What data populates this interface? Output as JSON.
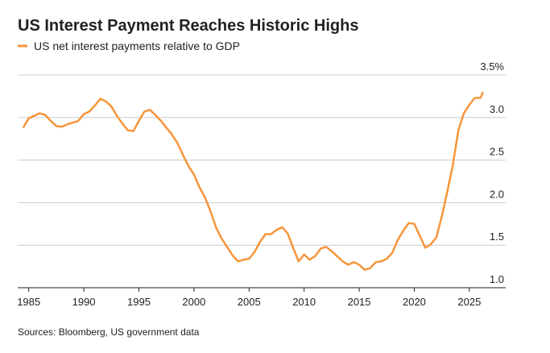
{
  "chart_data": {
    "type": "line",
    "title": "US Interest Payment Reaches Historic Highs",
    "source": "Sources: Bloomberg, US government data",
    "x": [
      1984.5,
      1985,
      1985.5,
      1986,
      1986.5,
      1987,
      1987.5,
      1988,
      1988.5,
      1989,
      1989.5,
      1990,
      1990.5,
      1991,
      1991.5,
      1992,
      1992.5,
      1993,
      1993.5,
      1994,
      1994.5,
      1995,
      1995.5,
      1996,
      1996.5,
      1997,
      1997.5,
      1998,
      1998.5,
      1999,
      1999.5,
      2000,
      2000.5,
      2001,
      2001.5,
      2002,
      2002.5,
      2003,
      2003.5,
      2004,
      2004.5,
      2005,
      2005.5,
      2006,
      2006.5,
      2007,
      2007.5,
      2008,
      2008.5,
      2009,
      2009.5,
      2010,
      2010.5,
      2011,
      2011.5,
      2012,
      2012.5,
      2013,
      2013.5,
      2014,
      2014.5,
      2015,
      2015.5,
      2016,
      2016.5,
      2017,
      2017.5,
      2018,
      2018.5,
      2019,
      2019.5,
      2020,
      2020.5,
      2021,
      2021.5,
      2022,
      2022.5,
      2023,
      2023.5,
      2024,
      2024.5,
      2025,
      2025.5,
      2026,
      2026.25
    ],
    "series": [
      {
        "name": "US net interest payments relative to GDP",
        "color": "#f7953b",
        "values": [
          2.88,
          2.99,
          3.02,
          3.05,
          3.03,
          2.96,
          2.9,
          2.89,
          2.92,
          2.94,
          2.96,
          3.04,
          3.07,
          3.14,
          3.22,
          3.19,
          3.13,
          3.02,
          2.93,
          2.85,
          2.84,
          2.96,
          3.07,
          3.09,
          3.03,
          2.96,
          2.88,
          2.8,
          2.7,
          2.56,
          2.43,
          2.33,
          2.18,
          2.06,
          1.9,
          1.71,
          1.58,
          1.48,
          1.38,
          1.31,
          1.33,
          1.34,
          1.42,
          1.54,
          1.63,
          1.63,
          1.68,
          1.71,
          1.64,
          1.47,
          1.31,
          1.39,
          1.33,
          1.37,
          1.46,
          1.48,
          1.43,
          1.37,
          1.31,
          1.27,
          1.3,
          1.27,
          1.21,
          1.23,
          1.3,
          1.31,
          1.34,
          1.41,
          1.56,
          1.67,
          1.76,
          1.75,
          1.61,
          1.47,
          1.51,
          1.59,
          1.84,
          2.13,
          2.44,
          2.85,
          3.05,
          3.15,
          3.23,
          3.23,
          3.3
        ]
      }
    ],
    "xlim": [
      1984,
      2028.3
    ],
    "xticks": [
      1985,
      1990,
      1995,
      2000,
      2005,
      2010,
      2015,
      2020,
      2025
    ],
    "ylim": [
      1.0,
      3.5
    ],
    "yticks": [
      {
        "value": 1.0,
        "label": "1.0"
      },
      1.5,
      {
        "value": 2.0,
        "label": "2.0"
      },
      2.5,
      {
        "value": 3.0,
        "label": "3.0"
      },
      {
        "value": 3.5,
        "label": "3.5%"
      }
    ],
    "grid": true
  }
}
